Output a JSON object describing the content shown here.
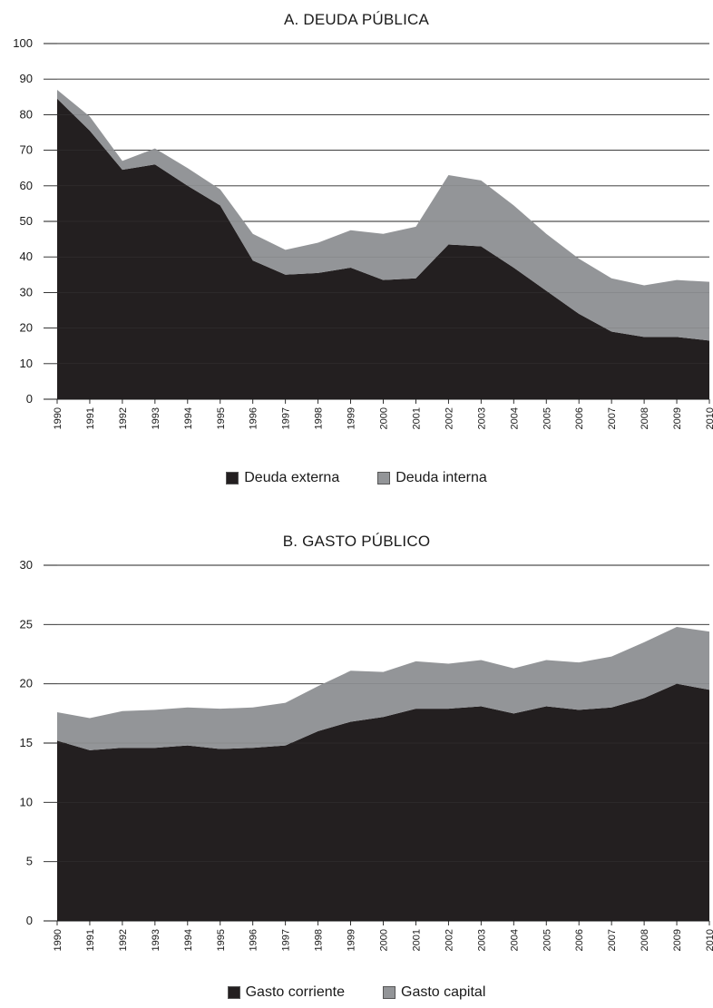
{
  "colors": {
    "primary_series": "#231f20",
    "secondary_series": "#939598",
    "grid": "#1a1a1a"
  },
  "chart_data": [
    {
      "type": "area",
      "stacked": true,
      "title": "A. DEUDA PÚBLICA",
      "xlabel": "",
      "ylabel": "",
      "ylim": [
        0,
        100
      ],
      "yticks": [
        0,
        10,
        20,
        30,
        40,
        50,
        60,
        70,
        80,
        90,
        100
      ],
      "grid": true,
      "legend_position": "bottom",
      "x": [
        "1990",
        "1991",
        "1992",
        "1993",
        "1994",
        "1995",
        "1996",
        "1997",
        "1998",
        "1999",
        "2000",
        "2001",
        "2002",
        "2003",
        "2004",
        "2005",
        "2006",
        "2007",
        "2008",
        "2009",
        "2010"
      ],
      "series": [
        {
          "name": "Deuda externa",
          "color": "#231f20",
          "values": [
            84.5,
            75.5,
            64.5,
            66,
            60,
            54.5,
            39,
            35,
            35.5,
            37,
            33.5,
            34,
            43.5,
            43,
            37,
            30.5,
            24,
            19,
            17.5,
            17.5,
            16.5
          ]
        },
        {
          "name": "Deuda interna",
          "color": "#939598",
          "values": [
            2.5,
            4,
            2.5,
            4.5,
            5,
            4.5,
            7.5,
            7,
            8.5,
            10.5,
            13,
            14.5,
            19.5,
            18.5,
            17.5,
            16,
            15.5,
            15,
            14.5,
            16,
            16.5
          ]
        }
      ]
    },
    {
      "type": "area",
      "stacked": true,
      "title": "B. GASTO PÚBLICO",
      "xlabel": "",
      "ylabel": "",
      "ylim": [
        0,
        30
      ],
      "yticks": [
        0,
        5,
        10,
        15,
        20,
        25,
        30
      ],
      "grid": true,
      "legend_position": "bottom",
      "x": [
        "1990",
        "1991",
        "1992",
        "1993",
        "1994",
        "1995",
        "1996",
        "1997",
        "1998",
        "1999",
        "2000",
        "2001",
        "2002",
        "2003",
        "2004",
        "2005",
        "2006",
        "2007",
        "2008",
        "2009",
        "2010"
      ],
      "series": [
        {
          "name": "Gasto corriente",
          "color": "#231f20",
          "values": [
            15.2,
            14.4,
            14.6,
            14.6,
            14.8,
            14.5,
            14.6,
            14.8,
            16.0,
            16.8,
            17.2,
            17.9,
            17.9,
            18.1,
            17.5,
            18.1,
            17.8,
            18.0,
            18.8,
            20.0,
            19.5
          ]
        },
        {
          "name": "Gasto capital",
          "color": "#939598",
          "values": [
            2.4,
            2.7,
            3.1,
            3.2,
            3.2,
            3.4,
            3.4,
            3.6,
            3.8,
            4.3,
            3.8,
            4.0,
            3.8,
            3.9,
            3.8,
            3.9,
            4.0,
            4.3,
            4.7,
            4.8,
            4.9
          ]
        }
      ]
    }
  ]
}
